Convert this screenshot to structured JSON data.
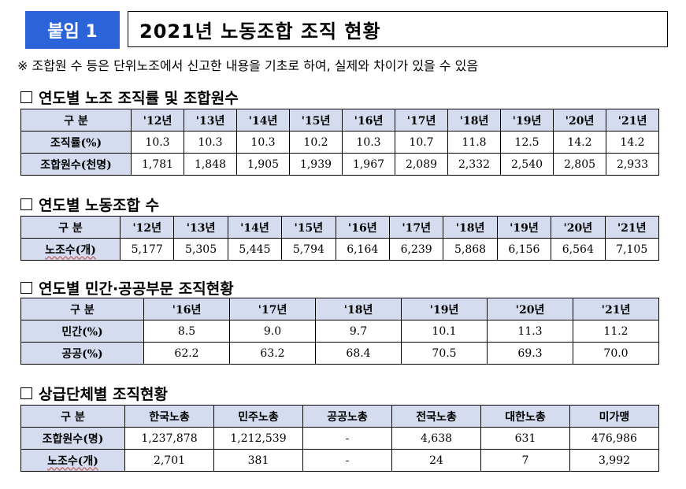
{
  "header": {
    "tag": "붙임 1",
    "title": "2021년 노동조합 조직 현황"
  },
  "note": "※ 조합원 수 등은 단위노조에서 신고한 내용을 기초로 하여, 실제와 차이가 있을 수 있음",
  "sections": [
    {
      "title": "연도별 노조 조직률 및 조합원수",
      "headers": [
        "구 분",
        "'12년",
        "'13년",
        "'14년",
        "'15년",
        "'16년",
        "'17년",
        "'18년",
        "'19년",
        "'20년",
        "'21년"
      ],
      "rows": [
        [
          "조직률(%)",
          "10.3",
          "10.3",
          "10.3",
          "10.2",
          "10.3",
          "10.7",
          "11.8",
          "12.5",
          "14.2",
          "14.2"
        ],
        [
          "조합원수(천명)",
          "1,781",
          "1,848",
          "1,905",
          "1,939",
          "1,967",
          "2,089",
          "2,332",
          "2,540",
          "2,805",
          "2,933"
        ]
      ]
    },
    {
      "title": "연도별 노동조합 수",
      "headers": [
        "구 분",
        "'12년",
        "'13년",
        "'14년",
        "'15년",
        "'16년",
        "'17년",
        "'18년",
        "'19년",
        "'20년",
        "'21년"
      ],
      "rows": [
        [
          "노조수(개)",
          "5,177",
          "5,305",
          "5,445",
          "5,794",
          "6,164",
          "6,239",
          "5,868",
          "6,156",
          "6,564",
          "7,105"
        ]
      ]
    },
    {
      "title": "연도별 민간·공공부문 조직현황",
      "headers": [
        "구 분",
        "'16년",
        "'17년",
        "'18년",
        "'19년",
        "'20년",
        "'21년"
      ],
      "rows": [
        [
          "민간(%)",
          "8.5",
          "9.0",
          "9.7",
          "10.1",
          "11.3",
          "11.2"
        ],
        [
          "공공(%)",
          "62.2",
          "63.2",
          "68.4",
          "70.5",
          "69.3",
          "70.0"
        ]
      ]
    },
    {
      "title": "상급단체별 조직현황",
      "headers": [
        "구 분",
        "한국노총",
        "민주노총",
        "공공노총",
        "전국노총",
        "대한노총",
        "미가맹"
      ],
      "rows": [
        [
          "조합원수(명)",
          "1,237,878",
          "1,212,539",
          "-",
          "4,638",
          "631",
          "476,986"
        ],
        [
          "노조수(개)",
          "2,701",
          "381",
          "-",
          "24",
          "7",
          "3,992"
        ]
      ]
    }
  ]
}
